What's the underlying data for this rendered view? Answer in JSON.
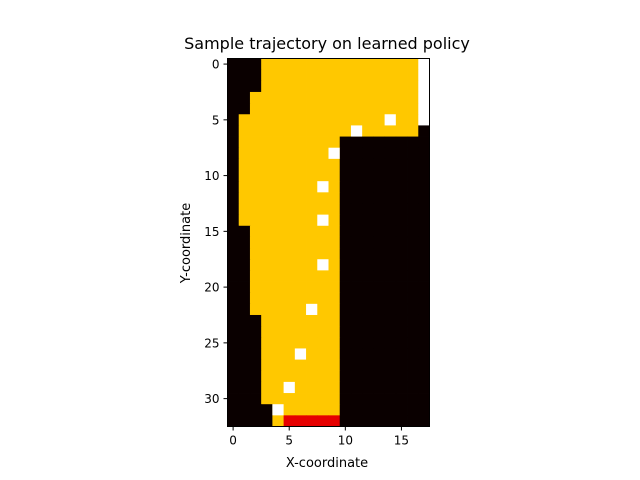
{
  "chart_data": {
    "type": "heatmap",
    "title": "Sample trajectory on learned policy",
    "xlabel": "X-coordinate",
    "ylabel": "Y-coordinate",
    "xlim": [
      -0.5,
      17.5
    ],
    "ylim": [
      32.5,
      -0.5
    ],
    "x_ticks": [
      0,
      5,
      10,
      15
    ],
    "y_ticks": [
      0,
      5,
      10,
      15,
      20,
      25,
      30
    ],
    "grid": false,
    "legend": "none",
    "colors": {
      "wall": "#0a0000",
      "track": "#ffc800",
      "start": "#e60000",
      "finish": "#ffffff",
      "visited": "#ffffff"
    },
    "track_rows": [
      [
        3,
        16
      ],
      [
        3,
        16
      ],
      [
        3,
        16
      ],
      [
        2,
        16
      ],
      [
        2,
        16
      ],
      [
        1,
        16
      ],
      [
        1,
        16
      ],
      [
        1,
        9
      ],
      [
        1,
        9
      ],
      [
        1,
        9
      ],
      [
        1,
        9
      ],
      [
        1,
        9
      ],
      [
        1,
        9
      ],
      [
        1,
        9
      ],
      [
        1,
        9
      ],
      [
        2,
        9
      ],
      [
        2,
        9
      ],
      [
        2,
        9
      ],
      [
        2,
        9
      ],
      [
        2,
        9
      ],
      [
        2,
        9
      ],
      [
        2,
        9
      ],
      [
        2,
        9
      ],
      [
        3,
        9
      ],
      [
        3,
        9
      ],
      [
        3,
        9
      ],
      [
        3,
        9
      ],
      [
        3,
        9
      ],
      [
        3,
        9
      ],
      [
        3,
        9
      ],
      [
        3,
        9
      ],
      [
        4,
        9
      ],
      [
        4,
        9
      ]
    ],
    "finish_line": {
      "x": 17,
      "y": [
        0,
        5
      ]
    },
    "start_line": {
      "y": 32,
      "x": [
        5,
        9
      ]
    },
    "trajectory": [
      [
        4,
        31
      ],
      [
        5,
        29
      ],
      [
        6,
        26
      ],
      [
        7,
        22
      ],
      [
        8,
        18
      ],
      [
        8,
        14
      ],
      [
        8,
        11
      ],
      [
        9,
        8
      ],
      [
        11,
        6
      ],
      [
        14,
        5
      ]
    ]
  }
}
